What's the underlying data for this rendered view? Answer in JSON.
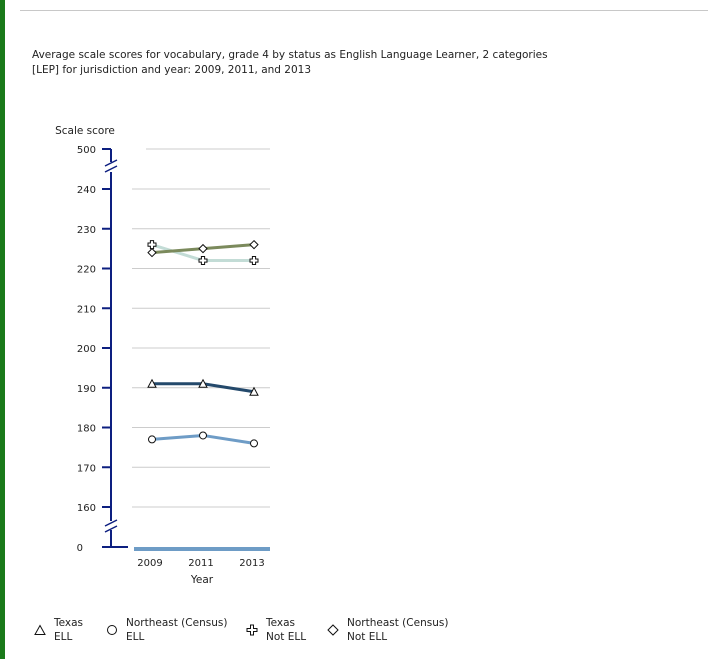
{
  "chart_data": {
    "type": "line",
    "title": "Average scale scores for vocabulary, grade 4 by status as English Language Learner, 2 categories [LEP] for jurisdiction and year: 2009, 2011, and 2013",
    "title_lines": [
      "Average scale scores for vocabulary, grade 4 by status as English Language Learner, 2 categories",
      "[LEP] for jurisdiction and year: 2009, 2011, and 2013"
    ],
    "ylabel": "Scale score",
    "xlabel": "Year",
    "x": [
      "2009",
      "2011",
      "2013"
    ],
    "ylim": [
      160,
      240
    ],
    "yticks": [
      160,
      170,
      180,
      190,
      200,
      210,
      220,
      230,
      240
    ],
    "axis_break_top_label": "500",
    "axis_break_bottom_label": "0",
    "grid": true,
    "legend_position": "bottom",
    "series": [
      {
        "name": "Texas ELL",
        "name_lines": [
          "Texas",
          "ELL"
        ],
        "marker": "triangle",
        "color": "#24496b",
        "values": [
          191,
          191,
          189
        ]
      },
      {
        "name": "Northeast (Census) ELL",
        "name_lines": [
          "Northeast (Census)",
          "ELL"
        ],
        "marker": "circle",
        "color": "#6e9cc6",
        "values": [
          177,
          178,
          176
        ]
      },
      {
        "name": "Texas Not ELL",
        "name_lines": [
          "Texas",
          "Not ELL"
        ],
        "marker": "cross",
        "color": "#c3dcd6",
        "values": [
          226,
          222,
          222
        ]
      },
      {
        "name": "Northeast (Census) Not ELL",
        "name_lines": [
          "Northeast (Census)",
          "Not ELL"
        ],
        "marker": "diamond",
        "color": "#7b8a5c",
        "values": [
          224,
          225,
          226
        ]
      }
    ],
    "colors": {
      "axis": "#0d1f80",
      "grid": "#cccccc",
      "baseline": "#6e9cc6"
    }
  }
}
